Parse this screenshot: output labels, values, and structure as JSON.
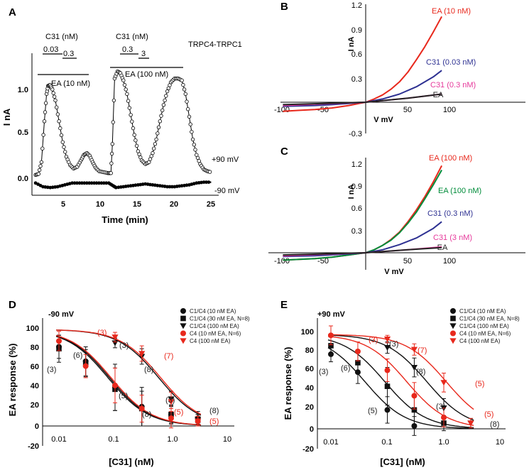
{
  "figure": {
    "panel_labels": [
      "A",
      "B",
      "C",
      "D",
      "E"
    ]
  },
  "chart_data": [
    {
      "panel": "A",
      "type": "line",
      "title": "TRPC4-TRPC1",
      "xlabel": "Time (min)",
      "ylabel": "I nA",
      "xlim": [
        0.5,
        26
      ],
      "ylim": [
        -0.18,
        1.3
      ],
      "xticks": [
        "5",
        "10",
        "15",
        "20",
        "25"
      ],
      "yticks": [
        "0.0",
        "0.5",
        "1.0"
      ],
      "trace_labels": [
        "+90 mV",
        "-90 mV"
      ],
      "annotations": {
        "c31_left": "C31 (nM)",
        "c31_right": "C31 (nM)",
        "dose_003": "0.03",
        "dose_03a": "0.3",
        "dose_03b": "0.3",
        "dose_3": "3",
        "ea_left": "EA (10 nM)",
        "ea_right": "EA (100 nM)"
      },
      "series": [
        {
          "name": "+90 mV",
          "x": [
            1,
            1.4,
            1.8,
            2.2,
            2.5,
            2.7,
            3.0,
            3.3,
            3.7,
            4.2,
            4.7,
            5.2,
            5.7,
            6.2,
            6.7,
            7.2,
            7.6,
            8.0,
            8.4,
            8.8,
            9.2,
            9.7,
            10.3,
            10.9,
            11.3,
            11.5,
            11.8,
            12.2,
            12.6,
            13.0,
            13.5,
            14.0,
            14.5,
            15.0,
            15.5,
            16.0,
            16.5,
            17.0,
            17.5,
            18.0,
            18.5,
            19.0,
            19.5,
            20.0,
            20.5,
            21.0,
            21.5,
            22.0,
            22.5,
            23.0,
            23.5,
            24.0,
            24.5,
            25.0
          ],
          "values": [
            0.06,
            0.07,
            0.2,
            0.65,
            0.95,
            1.04,
            1.05,
            1.0,
            0.88,
            0.65,
            0.42,
            0.26,
            0.17,
            0.13,
            0.15,
            0.22,
            0.28,
            0.3,
            0.27,
            0.2,
            0.14,
            0.1,
            0.09,
            0.08,
            0.08,
            0.4,
            1.12,
            1.2,
            1.18,
            1.1,
            0.95,
            0.72,
            0.5,
            0.32,
            0.22,
            0.18,
            0.2,
            0.3,
            0.45,
            0.65,
            0.83,
            0.98,
            1.08,
            1.12,
            1.12,
            1.1,
            0.95,
            0.7,
            0.45,
            0.28,
            0.18,
            0.12,
            0.1,
            0.09
          ]
        },
        {
          "name": "-90 mV",
          "x": [
            1,
            2,
            3,
            4,
            5,
            6,
            7,
            8,
            9,
            10,
            11,
            11.6,
            12,
            13,
            14,
            15,
            16,
            17,
            18,
            19,
            20,
            21,
            22,
            23,
            24,
            25
          ],
          "values": [
            -0.03,
            -0.07,
            -0.08,
            -0.07,
            -0.05,
            -0.03,
            -0.03,
            -0.03,
            -0.03,
            -0.03,
            -0.03,
            -0.06,
            -0.08,
            -0.07,
            -0.06,
            -0.05,
            -0.04,
            -0.05,
            -0.06,
            -0.07,
            -0.07,
            -0.06,
            -0.05,
            -0.03,
            -0.02,
            -0.02
          ]
        }
      ]
    },
    {
      "panel": "B",
      "type": "line",
      "xlabel": "V mV",
      "ylabel": "I nA",
      "xlim": [
        -100,
        100
      ],
      "ylim": [
        -0.3,
        1.2
      ],
      "xticks": [
        "-100",
        "-50",
        "0",
        "50",
        "100"
      ],
      "yticks": [
        "-0.3",
        "0.3",
        "0.6",
        "0.9",
        "1.2"
      ],
      "series": [
        {
          "name": "EA (10 nM)",
          "color": "#e8281c",
          "x": [
            -98,
            -80,
            -60,
            -40,
            -20,
            0,
            10,
            20,
            30,
            40,
            50,
            60,
            70,
            80,
            90
          ],
          "values": [
            -0.11,
            -0.1,
            -0.09,
            -0.07,
            -0.04,
            0,
            0.04,
            0.09,
            0.16,
            0.25,
            0.37,
            0.52,
            0.68,
            0.86,
            1.05
          ]
        },
        {
          "name": "C31 (0.03 nM)",
          "color": "#2e3192",
          "x": [
            -98,
            -80,
            -60,
            -40,
            -20,
            0,
            20,
            40,
            60,
            80,
            90
          ],
          "values": [
            -0.05,
            -0.045,
            -0.04,
            -0.03,
            -0.015,
            0,
            0.04,
            0.1,
            0.19,
            0.31,
            0.39
          ]
        },
        {
          "name": "C31 (0.3 nM)",
          "color": "#e6399b",
          "x": [
            -98,
            -50,
            0,
            50,
            90
          ],
          "values": [
            -0.04,
            -0.02,
            0,
            0.05,
            0.1
          ]
        },
        {
          "name": "-EA",
          "color": "#222222",
          "x": [
            -98,
            -50,
            0,
            50,
            90
          ],
          "values": [
            -0.03,
            -0.015,
            0,
            0.05,
            0.1
          ]
        }
      ]
    },
    {
      "panel": "C",
      "type": "line",
      "xlabel": "V mV",
      "ylabel": "I nA",
      "xlim": [
        -100,
        100
      ],
      "ylim": [
        -0.2,
        1.3
      ],
      "xticks": [
        "-100",
        "-50",
        "0",
        "50",
        "100"
      ],
      "yticks": [
        "0.3",
        "0.6",
        "0.9",
        "1.2"
      ],
      "series": [
        {
          "name": "EA (100 nM)",
          "color": "#e8281c",
          "x": [
            -98,
            -80,
            -60,
            -40,
            -20,
            0,
            10,
            20,
            30,
            40,
            50,
            60,
            70,
            80,
            90
          ],
          "values": [
            -0.1,
            -0.09,
            -0.08,
            -0.06,
            -0.03,
            0,
            0.04,
            0.1,
            0.18,
            0.28,
            0.42,
            0.58,
            0.76,
            0.96,
            1.18
          ]
        },
        {
          "name": "EA (100 nM)",
          "color": "#008c3a",
          "x": [
            -98,
            -80,
            -60,
            -40,
            -20,
            0,
            10,
            20,
            30,
            40,
            50,
            60,
            70,
            80,
            90
          ],
          "values": [
            -0.1,
            -0.09,
            -0.08,
            -0.06,
            -0.03,
            0,
            0.04,
            0.1,
            0.17,
            0.27,
            0.4,
            0.55,
            0.73,
            0.92,
            1.12
          ]
        },
        {
          "name": "C31 (0.3 nM)",
          "color": "#2e3192",
          "x": [
            -98,
            -60,
            -20,
            0,
            20,
            40,
            60,
            80,
            90
          ],
          "values": [
            -0.05,
            -0.04,
            -0.015,
            0,
            0.04,
            0.11,
            0.2,
            0.33,
            0.42
          ]
        },
        {
          "name": "C31 (3 nM)",
          "color": "#e6399b",
          "x": [
            -98,
            -50,
            0,
            50,
            90
          ],
          "values": [
            -0.04,
            -0.02,
            0,
            0.04,
            0.08
          ]
        },
        {
          "name": "-EA",
          "color": "#222222",
          "x": [
            -98,
            -50,
            0,
            50,
            90
          ],
          "values": [
            -0.03,
            -0.015,
            0,
            0.04,
            0.07
          ]
        }
      ]
    },
    {
      "panel": "D",
      "type": "scatter",
      "title": "-90 mV",
      "xlabel": "[C31] (nM)",
      "ylabel": "EA response (%)",
      "xscale": "log",
      "xlim": [
        0.004,
        10
      ],
      "ylim": [
        -20,
        110
      ],
      "xticks": [
        "0.01",
        "0.1",
        "1.0",
        "10"
      ],
      "yticks": [
        "-20",
        "0",
        "20",
        "40",
        "60",
        "80",
        "100"
      ],
      "legend_position": "top-right",
      "series": [
        {
          "name": "C1/C4 (10 nM EA)",
          "marker": "circle",
          "color": "#111111",
          "x": [
            0.01,
            0.03,
            0.1,
            0.3,
            1.0,
            3.0
          ],
          "values": [
            82,
            67,
            40,
            20,
            12,
            8
          ],
          "errors": [
            12,
            15,
            24,
            20,
            10,
            7
          ],
          "ic50": 0.08
        },
        {
          "name": "C1/C4 (30 nM EA, N=8)",
          "marker": "square",
          "color": "#111111",
          "x": [
            0.01,
            0.03,
            0.1,
            0.3,
            1.0,
            3.0
          ],
          "values": [
            80,
            65,
            38,
            18,
            12,
            6
          ],
          "errors": [
            14,
            14,
            22,
            18,
            9,
            6
          ],
          "ic50": 0.075
        },
        {
          "name": "C1/C4 (100 nM EA)",
          "marker": "triangle-down",
          "color": "#111111",
          "x": [
            0.1,
            0.3,
            1.0,
            3.0
          ],
          "values": [
            86,
            72,
            28,
            7
          ],
          "errors": [
            5,
            8,
            8,
            5
          ],
          "ic50": 0.6
        },
        {
          "name": "C4 (10 nM EA, N=6)",
          "marker": "circle",
          "color": "#e8281c",
          "x": [
            0.01,
            0.03,
            0.1,
            0.3,
            1.0,
            3.0
          ],
          "values": [
            88,
            62,
            42,
            18,
            8,
            5
          ],
          "errors": [
            10,
            12,
            18,
            14,
            10,
            5
          ],
          "ic50": 0.085
        },
        {
          "name": "C4 (100 nM EA)",
          "marker": "triangle-down",
          "color": "#e8281c",
          "x": [
            0.1,
            0.3,
            1.0,
            3.0
          ],
          "values": [
            92,
            75,
            25,
            5
          ],
          "errors": [
            5,
            8,
            10,
            5
          ],
          "ic50": 0.65
        }
      ],
      "n_labels": [
        {
          "text": "(3)",
          "color": "#222222"
        },
        {
          "text": "(6)",
          "color": "#222222"
        },
        {
          "text": "(3)",
          "color": "#e8281c"
        },
        {
          "text": "(3)",
          "color": "#222222"
        },
        {
          "text": "(7)",
          "color": "#e8281c"
        },
        {
          "text": "(8)",
          "color": "#222222"
        },
        {
          "text": "(5)",
          "color": "#222222"
        },
        {
          "text": "(3)",
          "color": "#222222"
        },
        {
          "text": "(5)",
          "color": "#e8281c"
        },
        {
          "text": "(8)",
          "color": "#222222"
        },
        {
          "text": "(8)",
          "color": "#222222"
        },
        {
          "text": "(5)",
          "color": "#e8281c"
        }
      ]
    },
    {
      "panel": "E",
      "type": "scatter",
      "title": "+90 mV",
      "xlabel": "[C31] (nM)",
      "ylabel": "EA response (%)",
      "xscale": "log",
      "xlim": [
        0.004,
        10
      ],
      "ylim": [
        -20,
        110
      ],
      "xticks": [
        "0.01",
        "0.1",
        "1.0",
        "10"
      ],
      "yticks": [
        "-20",
        "0",
        "20",
        "40",
        "60",
        "80",
        "100"
      ],
      "legend_position": "top-right",
      "series": [
        {
          "name": "C1/C4 (10 nM EA)",
          "marker": "circle",
          "color": "#111111",
          "x": [
            0.01,
            0.03,
            0.1,
            0.3
          ],
          "values": [
            79,
            60,
            20,
            3
          ],
          "errors": [
            8,
            12,
            14,
            10
          ],
          "ic50": 0.04
        },
        {
          "name": "C1/C4 (30 nM EA, N=8)",
          "marker": "square",
          "color": "#111111",
          "x": [
            0.01,
            0.03,
            0.1,
            0.3,
            1.0
          ],
          "values": [
            88,
            70,
            45,
            20,
            6
          ],
          "errors": [
            10,
            10,
            20,
            15,
            8
          ],
          "ic50": 0.09
        },
        {
          "name": "C1/C4 (100 nM EA)",
          "marker": "triangle-down",
          "color": "#111111",
          "x": [
            0.1,
            0.3,
            1.0,
            3.0
          ],
          "values": [
            86,
            65,
            22,
            6
          ],
          "errors": [
            6,
            10,
            10,
            5
          ],
          "ic50": 0.5
        },
        {
          "name": "C4 (10 nM EA, N=6)",
          "marker": "circle",
          "color": "#e8281c",
          "x": [
            0.01,
            0.03,
            0.1,
            0.3,
            1.0
          ],
          "values": [
            99,
            82,
            62,
            35,
            12
          ],
          "errors": [
            10,
            10,
            12,
            14,
            10
          ],
          "ic50": 0.22
        },
        {
          "name": "C4 (100 nM EA)",
          "marker": "triangle-down",
          "color": "#e8281c",
          "x": [
            0.1,
            0.3,
            1.0,
            3.0
          ],
          "values": [
            95,
            84,
            49,
            6
          ],
          "errors": [
            4,
            6,
            10,
            5
          ],
          "ic50": 1.1
        }
      ],
      "n_labels": [
        {
          "text": "(3)",
          "color": "#222222"
        },
        {
          "text": "(6)",
          "color": "#222222"
        },
        {
          "text": "(3)",
          "color": "#e8281c"
        },
        {
          "text": "(3)",
          "color": "#222222"
        },
        {
          "text": "(7)",
          "color": "#e8281c"
        },
        {
          "text": "(8)",
          "color": "#222222"
        },
        {
          "text": "(5)",
          "color": "#e8281c"
        },
        {
          "text": "(5)",
          "color": "#222222"
        },
        {
          "text": "(3)",
          "color": "#222222"
        },
        {
          "text": "(5)",
          "color": "#e8281c"
        },
        {
          "text": "(8)",
          "color": "#222222"
        }
      ]
    }
  ]
}
